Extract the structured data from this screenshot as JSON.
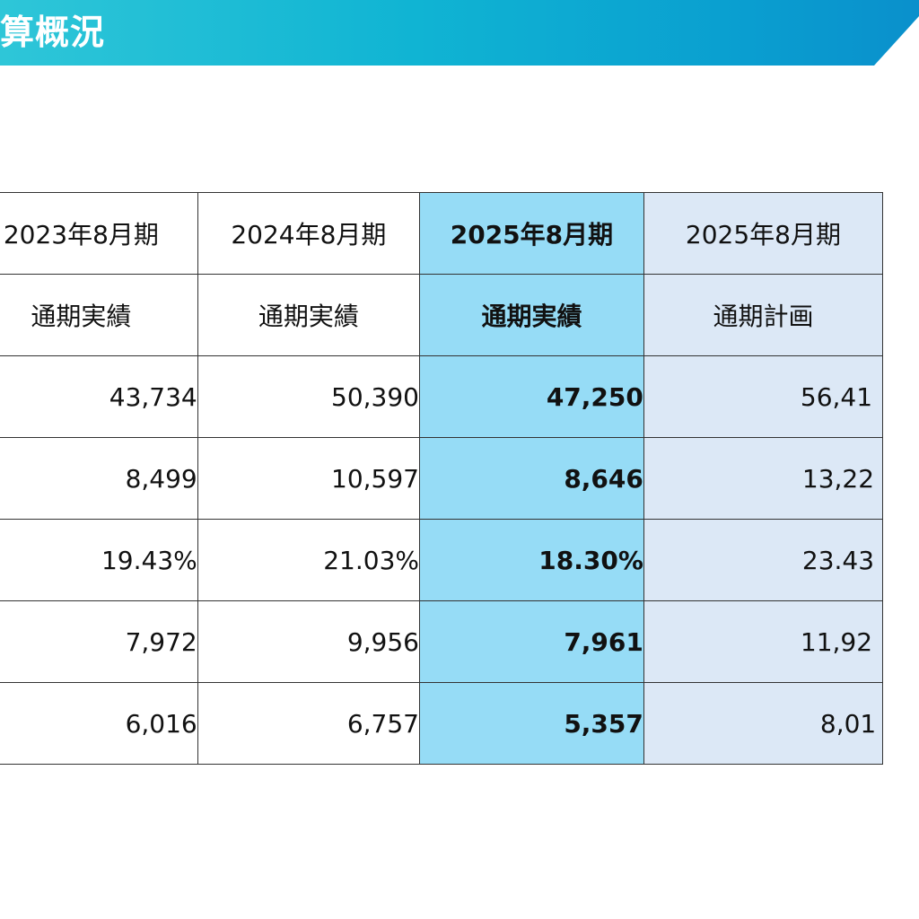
{
  "header": {
    "title": "算概況"
  },
  "columns": [
    {
      "period": "2023年8月期",
      "kind": "通期実績"
    },
    {
      "period": "2024年8月期",
      "kind": "通期実績"
    },
    {
      "period": "2025年8月期",
      "kind": "通期実績"
    },
    {
      "period": "2025年8月期",
      "kind": "通期計画"
    }
  ],
  "rows": [
    [
      "43,734",
      "50,390",
      "47,250",
      "56,41"
    ],
    [
      "8,499",
      "10,597",
      "8,646",
      "13,22"
    ],
    [
      "19.43%",
      "21.03%",
      "18.30%",
      "23.43"
    ],
    [
      "7,972",
      "9,956",
      "7,961",
      "11,92"
    ],
    [
      "6,016",
      "6,757",
      "5,357",
      "8,01"
    ]
  ],
  "colors": {
    "banner": "#10b4d3",
    "highlight_column": "#96dcf6",
    "plan_column": "#dce8f6"
  }
}
